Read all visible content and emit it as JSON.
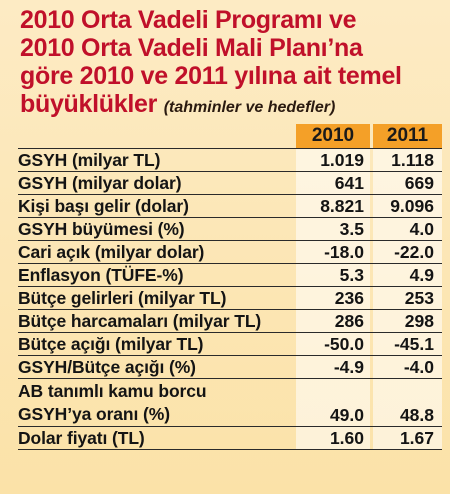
{
  "title": {
    "line1": "2010 Orta Vadeli Programı ve",
    "line2": "2010 Orta Vadeli Mali Planı’na",
    "line3": "göre 2010 ve 2011 yılına ait temel",
    "line4": "büyüklükler",
    "subtitle": "(tahminler ve hedefler)"
  },
  "headers": [
    "2010",
    "2011"
  ],
  "rows": [
    {
      "label": "GSYH (milyar TL)",
      "v2010": "1.019",
      "v2011": "1.118"
    },
    {
      "label": "GSYH (milyar dolar)",
      "v2010": "641",
      "v2011": "669"
    },
    {
      "label": "Kişi başı gelir (dolar)",
      "v2010": "8.821",
      "v2011": "9.096"
    },
    {
      "label": "GSYH büyümesi (%)",
      "v2010": "3.5",
      "v2011": "4.0"
    },
    {
      "label": "Cari açık (milyar dolar)",
      "v2010": "-18.0",
      "v2011": "-22.0"
    },
    {
      "label": "Enflasyon (TÜFE-%)",
      "v2010": "5.3",
      "v2011": "4.9"
    },
    {
      "label": "Bütçe gelirleri (milyar TL)",
      "v2010": "236",
      "v2011": "253"
    },
    {
      "label": "Bütçe harcamaları (milyar TL)",
      "v2010": "286",
      "v2011": "298"
    },
    {
      "label": "Bütçe açığı (milyar TL)",
      "v2010": "-50.0",
      "v2011": "-45.1"
    },
    {
      "label": "GSYH/Bütçe açığı (%)",
      "v2010": "-4.9",
      "v2011": "-4.0"
    }
  ],
  "tall_row": {
    "label_line1": "AB tanımlı kamu borcu",
    "label_line2": "GSYH’ya oranı (%)",
    "v2010": "49.0",
    "v2011": "48.8"
  },
  "last_row": {
    "label": "Dolar fiyatı (TL)",
    "v2010": "1.60",
    "v2011": "1.67"
  },
  "colors": {
    "title": "#c0102a",
    "header_bg": "#f4a028",
    "panel_bg": "#fbe2a8"
  }
}
